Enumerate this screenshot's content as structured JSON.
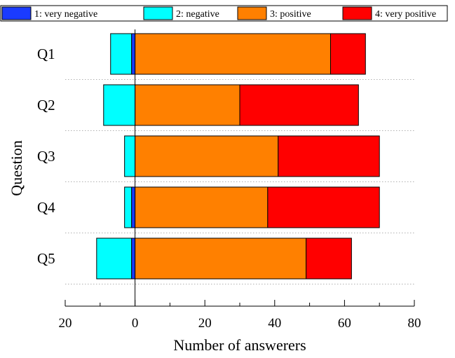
{
  "chart_data": {
    "type": "bar",
    "orientation": "horizontal",
    "stacked": "diverging",
    "categories": [
      "Q1",
      "Q2",
      "Q3",
      "Q4",
      "Q5"
    ],
    "series": [
      {
        "name": "1: very negative",
        "color": "#1a3bff",
        "values": [
          -1,
          0,
          0,
          -1,
          -1
        ],
        "direction": "negative"
      },
      {
        "name": "2: negative",
        "color": "#00ffff",
        "values": [
          -6,
          -9,
          -3,
          -2,
          -10
        ],
        "direction": "negative"
      },
      {
        "name": "3: positive",
        "color": "#ff8000",
        "values": [
          56,
          30,
          41,
          38,
          49
        ],
        "direction": "positive"
      },
      {
        "name": "4: very positive",
        "color": "#ff0000",
        "values": [
          10,
          34,
          29,
          32,
          13
        ],
        "direction": "positive"
      }
    ],
    "xlabel": "Number of answerers",
    "ylabel": "Question",
    "xlim": [
      -20,
      80
    ],
    "xticks": [
      -20,
      0,
      20,
      40,
      60,
      80
    ],
    "xtick_labels": [
      "20",
      "0",
      "20",
      "40",
      "60",
      "80"
    ],
    "legend_position": "top",
    "separators": "dotted"
  }
}
